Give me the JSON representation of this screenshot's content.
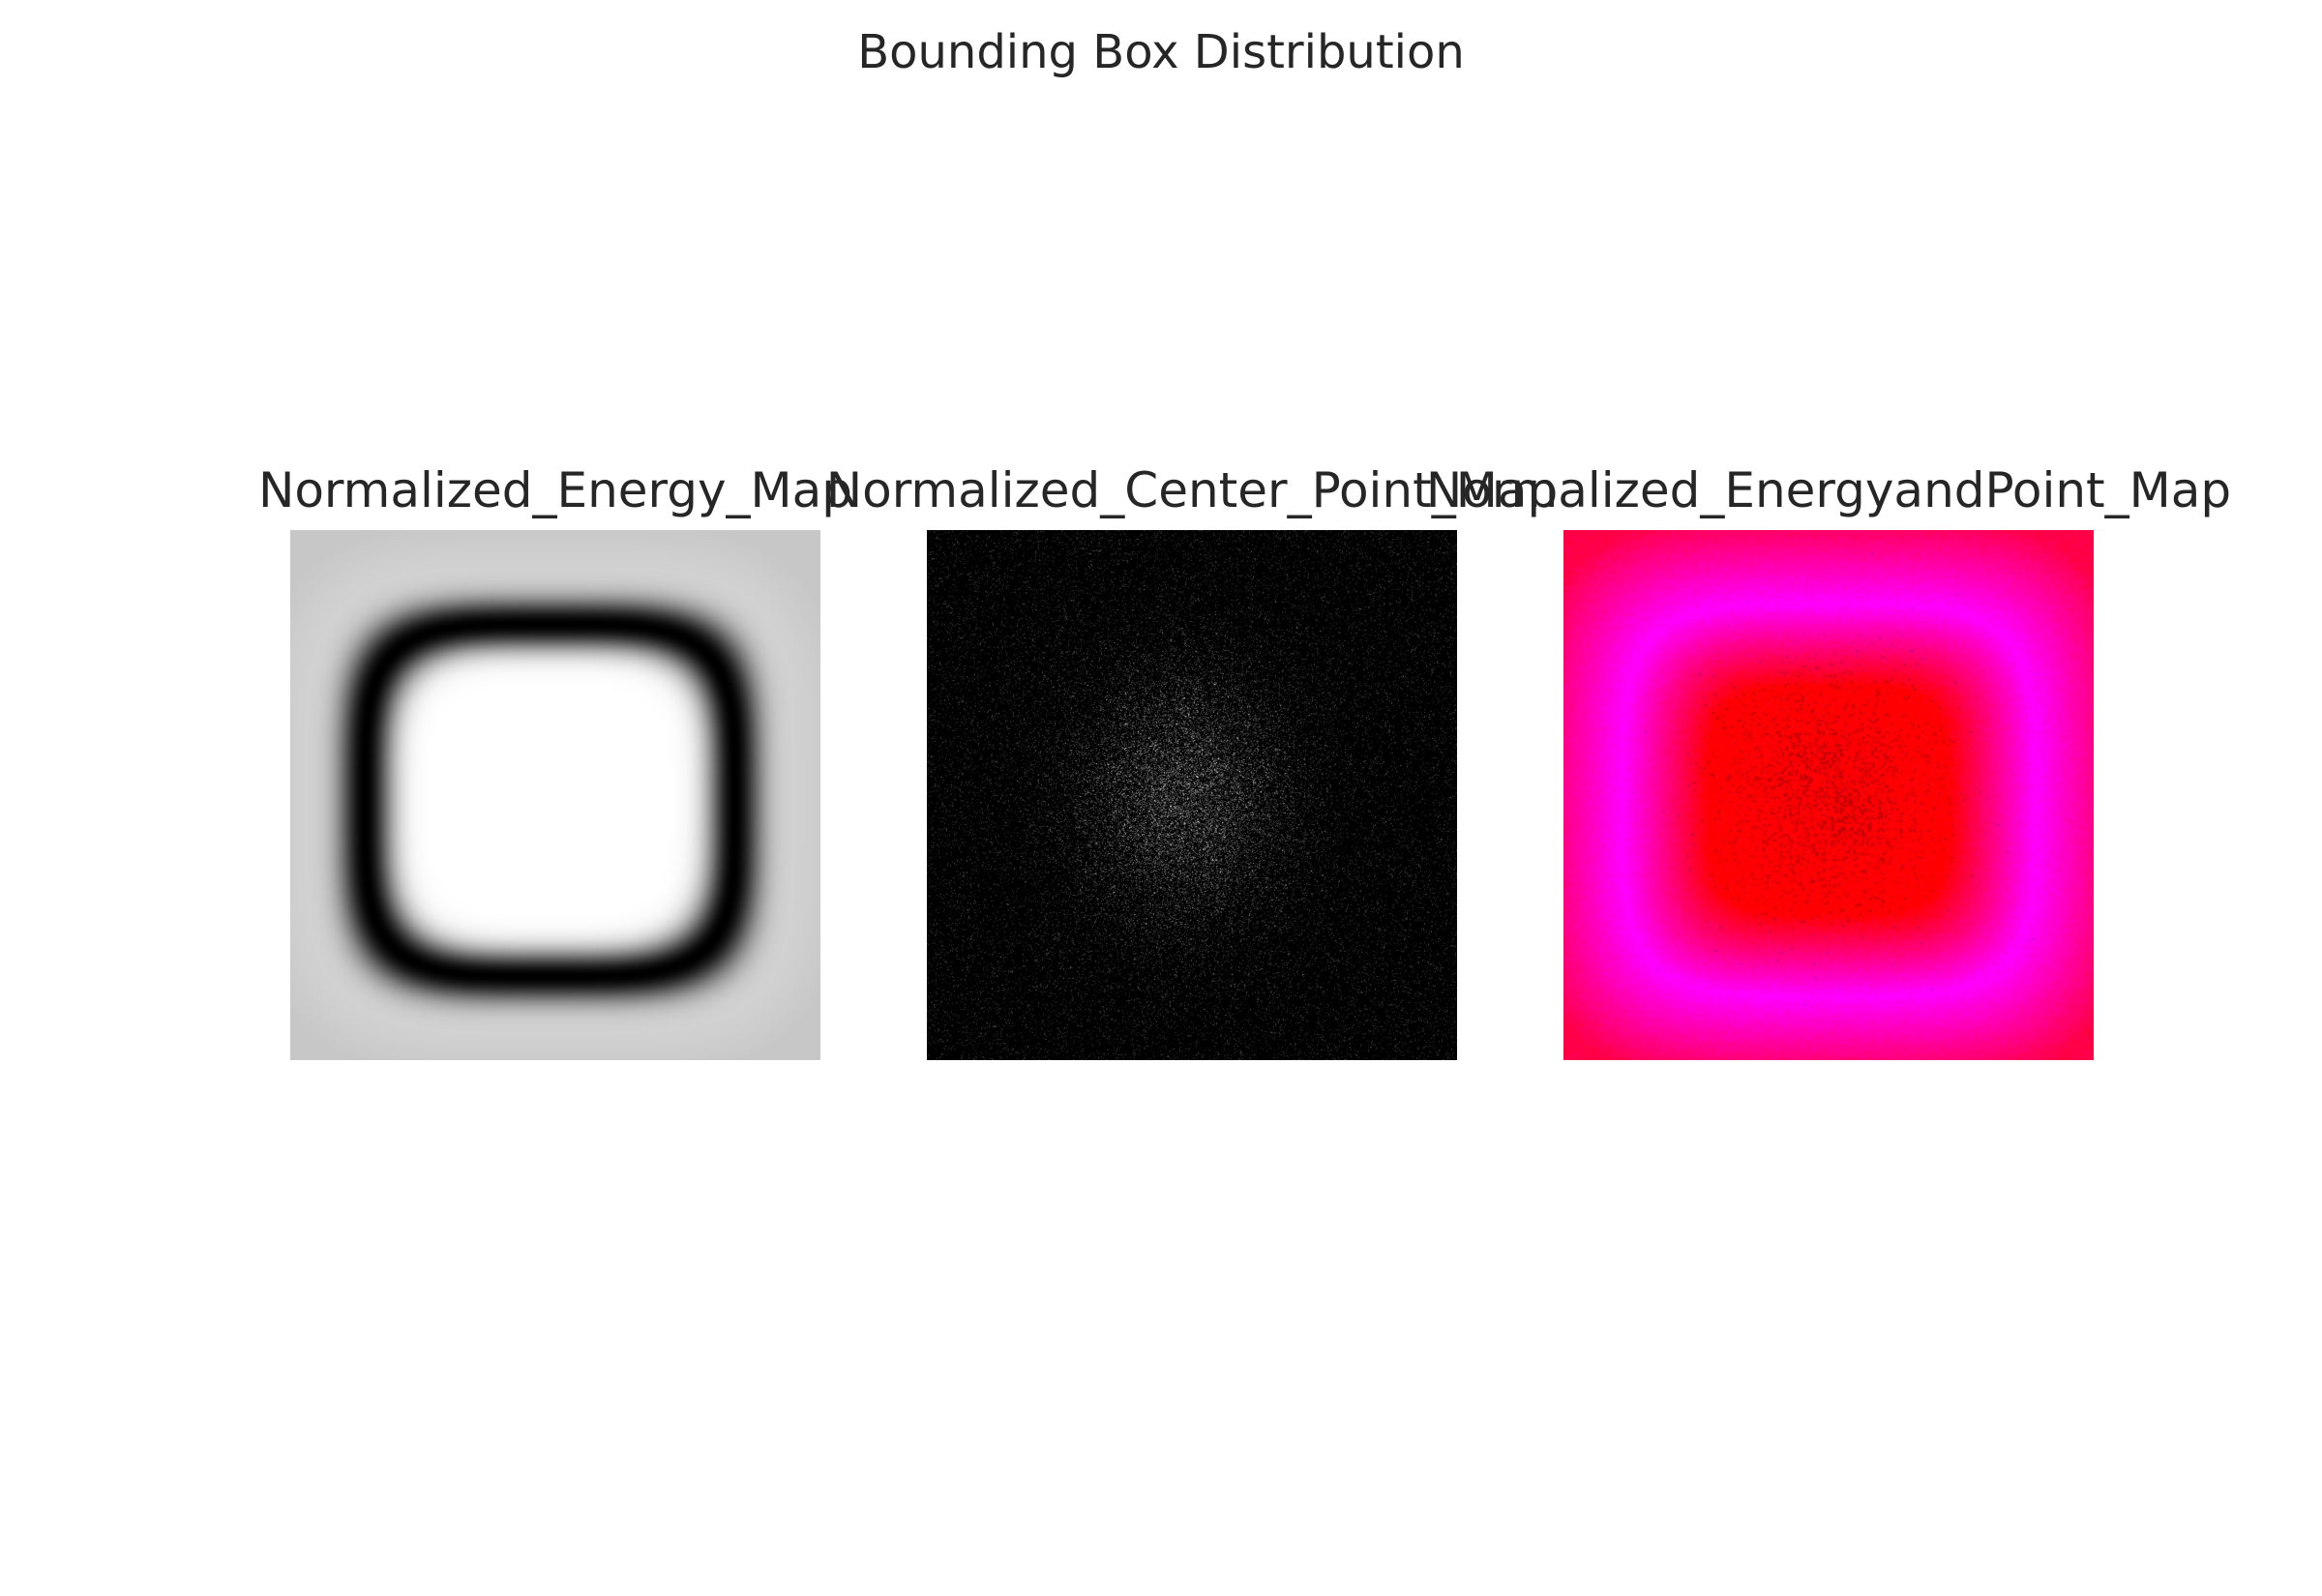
{
  "chart_data": {
    "type": "heatmap",
    "title": "Bounding Box Distribution",
    "grid": false,
    "axes_visible": false,
    "panels": [
      {
        "title": "Normalized_Energy_Map",
        "colormap": "gray",
        "description_values": {
          "center": 1.0,
          "ring": 0.0,
          "edge": 0.78
        }
      },
      {
        "title": "Normalized_Center_Point_Map",
        "colormap": "gray",
        "description_values": {
          "center_density_peak": 0.55,
          "background": 0.0
        }
      },
      {
        "title": "Normalized_EnergyandPoint_Map",
        "colors": {
          "center": "#ff0000",
          "ring": "#ff00ff",
          "edge": "#ff0048"
        }
      }
    ]
  }
}
